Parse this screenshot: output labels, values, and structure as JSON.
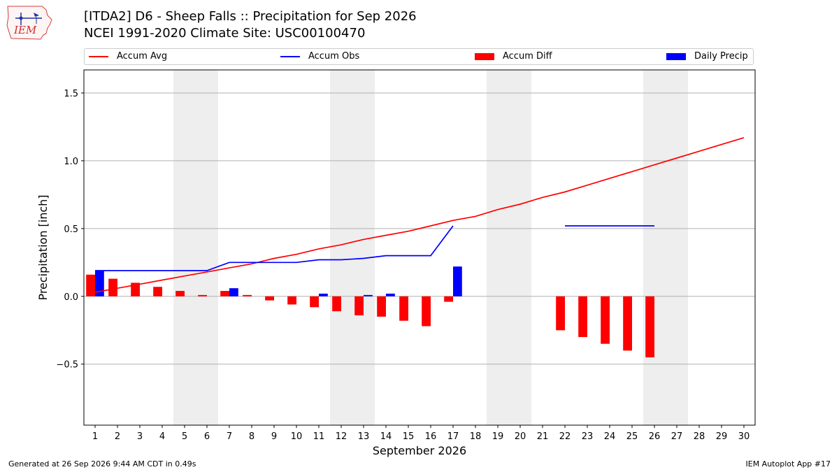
{
  "header": {
    "logo_text": "IEM",
    "title_line_1": "[ITDA2] D6 - Sheep Falls  :: Precipitation for Sep 2026",
    "title_line_2": "NCEI 1991-2020 Climate Site: USC00100470"
  },
  "legend": {
    "items": [
      {
        "label": "Accum Avg",
        "kind": "line",
        "color": "#ff0000"
      },
      {
        "label": "Accum Obs",
        "kind": "line",
        "color": "#0000ff"
      },
      {
        "label": "Accum Diff",
        "kind": "box",
        "color": "#ff0000"
      },
      {
        "label": "Daily Precip",
        "kind": "box",
        "color": "#0000ff"
      }
    ]
  },
  "footer": {
    "generated": "Generated at 26 Sep 2026 9:44 AM CDT in 0.49s",
    "app": "IEM Autoplot App #17"
  },
  "chart_data": {
    "type": "bar",
    "xlabel": "September 2026",
    "ylabel": "Precipitation [inch]",
    "xlim": [
      0.5,
      30.5
    ],
    "ylim": [
      -0.95,
      1.67
    ],
    "yticks": [
      -0.5,
      0.0,
      0.5,
      1.0,
      1.5
    ],
    "ytick_labels": [
      "−0.5",
      "0.0",
      "0.5",
      "1.0",
      "1.5"
    ],
    "categories": [
      "1",
      "2",
      "3",
      "4",
      "5",
      "6",
      "7",
      "8",
      "9",
      "10",
      "11",
      "12",
      "13",
      "14",
      "15",
      "16",
      "17",
      "18",
      "19",
      "20",
      "21",
      "22",
      "23",
      "24",
      "25",
      "26",
      "27",
      "28",
      "29",
      "30"
    ],
    "grid": "horizontal",
    "weekend_shading": [
      [
        4.5,
        6.5
      ],
      [
        11.5,
        13.5
      ],
      [
        18.5,
        20.5
      ],
      [
        25.5,
        27.5
      ]
    ],
    "shading_color": "#eeeeee",
    "series": [
      {
        "name": "Accum Avg",
        "kind": "line",
        "color": "#ff0000",
        "values": [
          0.03,
          0.06,
          0.09,
          0.12,
          0.15,
          0.18,
          0.21,
          0.24,
          0.28,
          0.31,
          0.35,
          0.38,
          0.42,
          0.45,
          0.48,
          0.52,
          0.56,
          0.59,
          0.64,
          0.68,
          0.73,
          0.77,
          0.82,
          0.87,
          0.92,
          0.97,
          1.02,
          1.07,
          1.12,
          1.17
        ]
      },
      {
        "name": "Accum Obs",
        "kind": "line",
        "color": "#0000ff",
        "values": [
          0.19,
          0.19,
          0.19,
          0.19,
          0.19,
          0.19,
          0.25,
          0.25,
          0.25,
          0.25,
          0.27,
          0.27,
          0.28,
          0.3,
          0.3,
          0.3,
          0.52,
          null,
          null,
          null,
          null,
          0.52,
          0.52,
          0.52,
          0.52,
          0.52,
          null,
          null,
          null,
          null
        ]
      },
      {
        "name": "Accum Diff",
        "kind": "bar",
        "color": "#ff0000",
        "values": [
          0.16,
          0.13,
          0.1,
          0.07,
          0.04,
          0.01,
          0.04,
          0.01,
          -0.03,
          -0.06,
          -0.08,
          -0.11,
          -0.14,
          -0.15,
          -0.18,
          -0.22,
          -0.04,
          null,
          null,
          null,
          null,
          -0.25,
          -0.3,
          -0.35,
          -0.4,
          -0.45,
          null,
          null,
          null,
          null
        ]
      },
      {
        "name": "Daily Precip",
        "kind": "bar",
        "color": "#0000ff",
        "values": [
          0.19,
          0,
          0,
          0,
          0,
          0,
          0.06,
          0,
          0,
          0,
          0.02,
          0,
          0.01,
          0.02,
          0,
          0,
          0.22,
          null,
          null,
          null,
          null,
          null,
          null,
          null,
          null,
          null,
          null,
          null,
          null,
          null
        ]
      }
    ]
  }
}
